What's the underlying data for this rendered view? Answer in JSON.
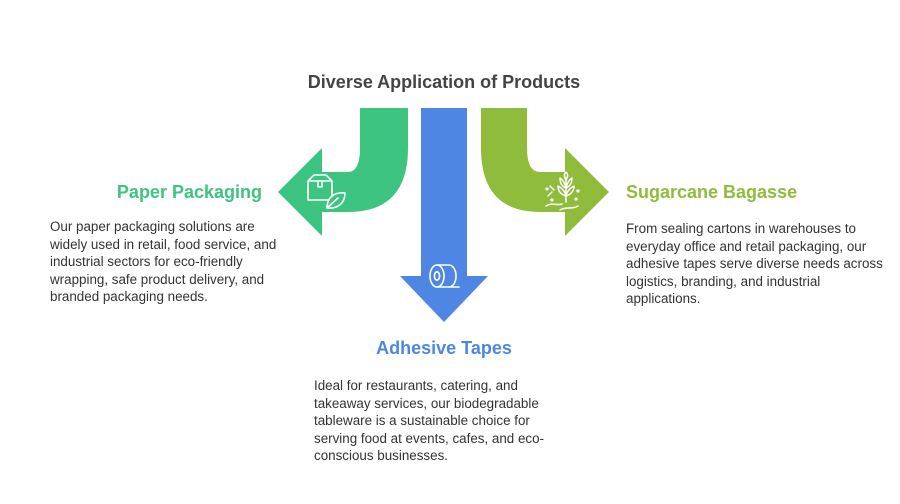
{
  "title": "Diverse Application of Products",
  "colors": {
    "green": "#3DC480",
    "blue": "#4E86E4",
    "olive": "#8FBC3A",
    "text": "#333333",
    "title": "#444444"
  },
  "items": [
    {
      "heading": "Paper Packaging",
      "description": "Our paper packaging solutions are widely used in retail, food service, and industrial sectors for eco-friendly wrapping, safe product delivery, and branded packaging needs.",
      "icon": "box-leaf-icon"
    },
    {
      "heading": "Adhesive Tapes",
      "description": "Ideal for restaurants, catering, and takeaway services, our biodegradable tableware is a sustainable choice for serving food at events, cafes, and eco-conscious businesses.",
      "icon": "tape-roll-icon"
    },
    {
      "heading": "Sugarcane Bagasse",
      "description": "From sealing cartons in warehouses to everyday office and retail packaging, our adhesive tapes serve diverse needs across logistics, branding, and industrial applications.",
      "icon": "sugarcane-icon"
    }
  ]
}
